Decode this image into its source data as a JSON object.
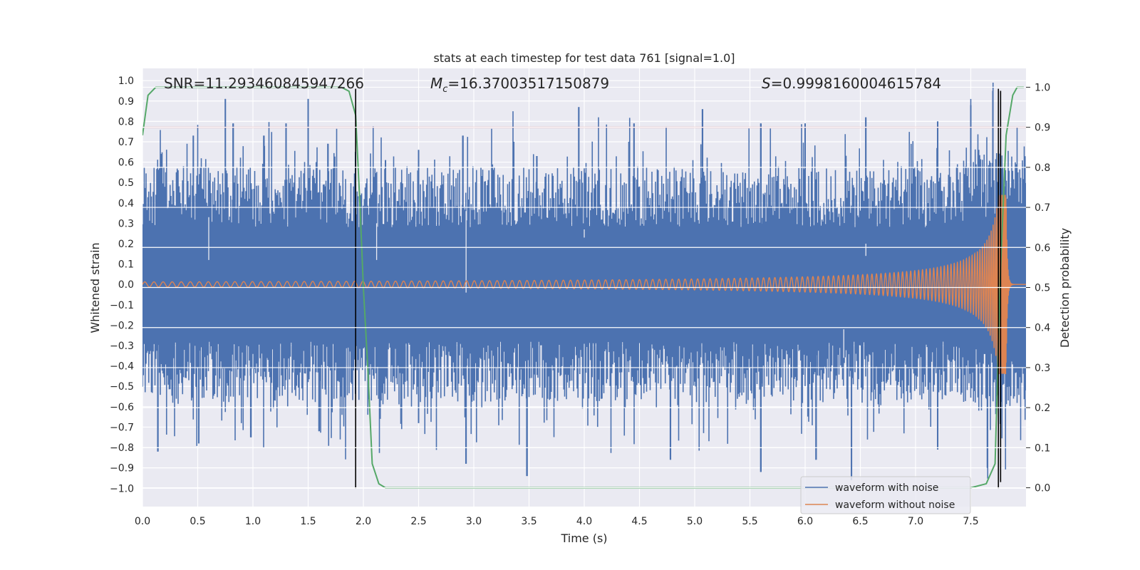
{
  "chart_data": {
    "type": "line",
    "title": "stats at each timestep for test data 761 [signal=1.0]",
    "xlabel": "Time (s)",
    "ylabel": "Whitened strain",
    "y2label": "Detection probability",
    "xlim": [
      0.0,
      8.0
    ],
    "ylim": [
      -1.09,
      1.06
    ],
    "y2lim": [
      -0.047,
      1.047
    ],
    "xticks": [
      "0.0",
      "0.5",
      "1.0",
      "1.5",
      "2.0",
      "2.5",
      "3.0",
      "3.5",
      "4.0",
      "4.5",
      "5.0",
      "5.5",
      "6.0",
      "6.5",
      "7.0",
      "7.5"
    ],
    "yticks": [
      "1.0",
      "0.9",
      "0.8",
      "0.7",
      "0.6",
      "0.5",
      "0.4",
      "0.3",
      "0.2",
      "0.1",
      "0.0",
      "−0.1",
      "−0.2",
      "−0.3",
      "−0.4",
      "−0.5",
      "−0.6",
      "−0.7",
      "−0.8",
      "−0.9",
      "−1.0"
    ],
    "y2ticks": [
      "1.0",
      "0.9",
      "0.8",
      "0.7",
      "0.6",
      "0.5",
      "0.4",
      "0.3",
      "0.2",
      "0.1",
      "0.0"
    ],
    "annotations": {
      "snr": "SNR=11.293460845947266",
      "mc_symbol": "M",
      "mc_subscript": "c",
      "mc_value": "=16.37003517150879",
      "s_symbol": "S",
      "s_value": "=0.9998160004615784"
    },
    "noise_series": {
      "name": "waveform with noise",
      "color": "#4c72b0",
      "core_band": [
        -0.28,
        0.28
      ],
      "peaks_top": [
        [
          0.17,
          0.64
        ],
        [
          0.31,
          0.55
        ],
        [
          0.46,
          0.73
        ],
        [
          0.75,
          0.91
        ],
        [
          0.82,
          0.79
        ],
        [
          1.1,
          0.73
        ],
        [
          1.3,
          0.79
        ],
        [
          1.5,
          0.91
        ],
        [
          1.68,
          0.69
        ],
        [
          2.2,
          0.61
        ],
        [
          2.5,
          0.66
        ],
        [
          2.9,
          0.73
        ],
        [
          3.36,
          0.7
        ],
        [
          3.57,
          0.63
        ],
        [
          3.95,
          0.87
        ],
        [
          4.45,
          0.79
        ],
        [
          5.07,
          0.86
        ],
        [
          5.6,
          0.79
        ],
        [
          6.0,
          0.79
        ],
        [
          6.55,
          0.82
        ],
        [
          7.2,
          0.8
        ],
        [
          7.5,
          0.88
        ],
        [
          7.7,
          0.95
        ]
      ],
      "peaks_bottom": [
        [
          0.14,
          -0.82
        ],
        [
          0.51,
          -0.78
        ],
        [
          0.98,
          -0.75
        ],
        [
          1.6,
          -0.72
        ],
        [
          2.5,
          -0.68
        ],
        [
          2.93,
          -0.88
        ],
        [
          3.48,
          -0.94
        ],
        [
          4.78,
          -0.86
        ],
        [
          5.6,
          -0.92
        ],
        [
          6.1,
          -0.86
        ],
        [
          6.42,
          -0.96
        ],
        [
          7.2,
          -0.81
        ],
        [
          7.65,
          -0.9
        ]
      ],
      "gap_columns": [
        [
          0.6,
          0.33,
          0.12
        ],
        [
          2.12,
          0.12,
          0.3
        ],
        [
          2.93,
          -0.04,
          0.36
        ],
        [
          4.0,
          0.23,
          0.27
        ],
        [
          6.35,
          -0.22,
          -0.36
        ],
        [
          6.55,
          0.14,
          0.36
        ]
      ]
    },
    "clean_series": {
      "name": "waveform without noise",
      "color": "#dd8452",
      "chirp": {
        "t_start": 0.0,
        "t_merger": 7.82,
        "f0": 12.0,
        "amp0": 0.012,
        "amp_peak": 0.44,
        "ringdown_to": 7.9
      }
    },
    "probability_series": {
      "name": "Detection probability",
      "color": "#55a868",
      "points": [
        [
          0.0,
          0.88
        ],
        [
          0.05,
          0.98
        ],
        [
          0.12,
          1.0
        ],
        [
          0.6,
          1.0
        ],
        [
          1.0,
          1.0
        ],
        [
          1.5,
          1.0
        ],
        [
          1.8,
          1.0
        ],
        [
          1.87,
          0.99
        ],
        [
          1.93,
          0.93
        ],
        [
          1.97,
          0.7
        ],
        [
          2.0,
          0.5
        ],
        [
          2.04,
          0.3
        ],
        [
          2.08,
          0.06
        ],
        [
          2.14,
          0.01
        ],
        [
          2.2,
          0.0
        ],
        [
          7.5,
          0.0
        ],
        [
          7.64,
          0.01
        ],
        [
          7.72,
          0.06
        ],
        [
          7.77,
          0.55
        ],
        [
          7.82,
          0.88
        ],
        [
          7.88,
          0.98
        ],
        [
          7.92,
          1.0
        ],
        [
          7.98,
          1.0
        ]
      ]
    },
    "threshold_line": {
      "y2": 0.9,
      "color": "#c44e52"
    },
    "vertical_markers": [
      {
        "x": 1.93,
        "y_from": -1.0,
        "y_to": 0.96
      },
      {
        "x": 7.75,
        "y_from": -1.0,
        "y_to": 0.96
      },
      {
        "x": 7.77,
        "y_from": -0.97,
        "y_to": 0.95
      }
    ],
    "grid": true,
    "legend": {
      "placement": "lower-right",
      "entries": [
        "waveform with noise",
        "waveform without noise"
      ]
    }
  }
}
